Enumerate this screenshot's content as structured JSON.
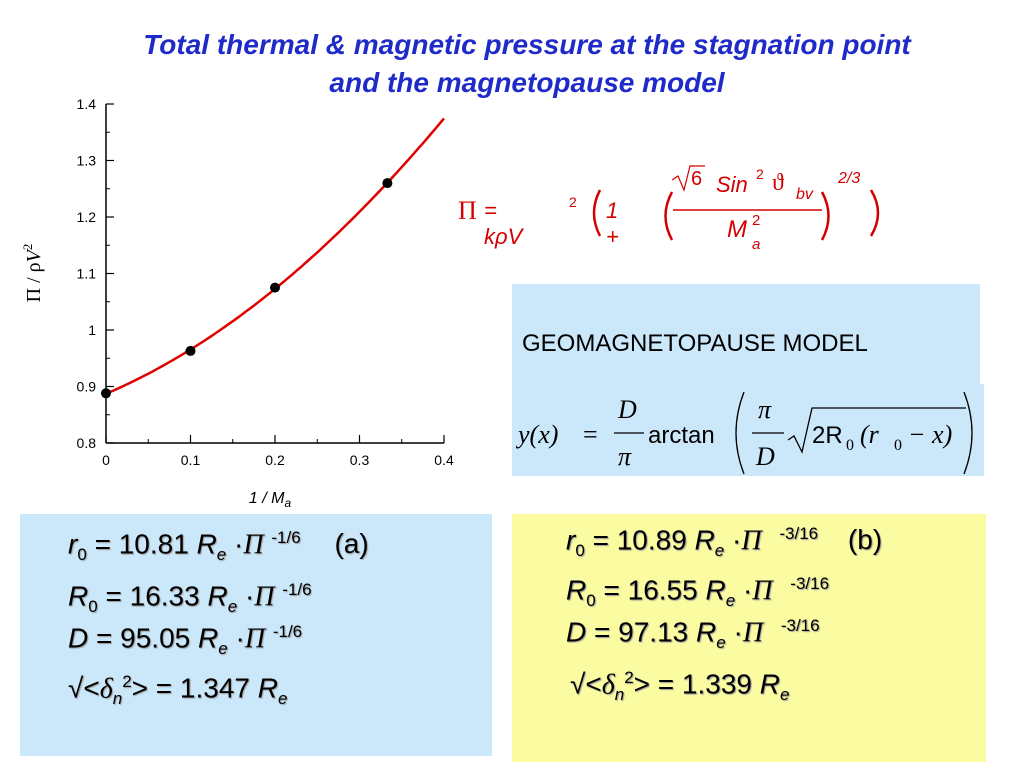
{
  "title": {
    "line1": "Total thermal & magnetic  pressure at the stagnation point",
    "line2": "and the magnetopause model"
  },
  "chart_data": {
    "type": "scatter",
    "xlabel": "1 / M_a",
    "ylabel": "Π / ρV²",
    "xlim": [
      0,
      0.4
    ],
    "ylim": [
      0.8,
      1.4
    ],
    "xticks": [
      "0",
      "0.1",
      "0.2",
      "0.3",
      "0.4"
    ],
    "yticks": [
      "0.8",
      "0.9",
      "1",
      "1.1",
      "1.2",
      "1.3",
      "1.4"
    ],
    "points": [
      {
        "x": 0.0,
        "y": 0.888
      },
      {
        "x": 0.1,
        "y": 0.963
      },
      {
        "x": 0.2,
        "y": 1.075
      },
      {
        "x": 0.333,
        "y": 1.26
      }
    ],
    "fit_curve": {
      "color": "#e00000",
      "x_range": [
        0,
        0.4
      ]
    },
    "point_color": "#000000",
    "grid": false
  },
  "formula_pi": {
    "lhs": "Π",
    "eq": "= kρV",
    "v_exp": "2",
    "one_plus": "1 +",
    "sqrt6": "6",
    "sin": "Sin",
    "sin_exp": "2",
    "theta": "ϑ",
    "theta_sub": "bv",
    "den": "M",
    "den_sup": "2",
    "den_sub": "a",
    "outer_exp": "2/3"
  },
  "model": {
    "label": "GEOMAGNETOPAUSE MODEL",
    "eq_lhs": "y(x)",
    "eq_D": "D",
    "eq_pi": "π",
    "eq_func": "arctan",
    "eq_sqrt": "2R",
    "eq_sqrt_sub": "0",
    "eq_inner": "(r",
    "eq_inner_sub": "0",
    "eq_inner_tail": "− x)"
  },
  "panel_a": {
    "r0": {
      "sym": "r",
      "sub": "0",
      "eq": "=  10.81",
      "unit": "R",
      "unit_sub": "e",
      "dot": "·",
      "pi": "Π",
      "exp": "-1/6",
      "tag": "(a)"
    },
    "R0": {
      "sym": "R",
      "sub": "0",
      "eq": "= 16.33",
      "unit": "R",
      "unit_sub": "e",
      "dot": "·",
      "pi": "Π",
      "exp": "-1/6"
    },
    "D": {
      "sym": "D",
      "eq": "=  95.05",
      "unit": "R",
      "unit_sub": "e",
      "dot": "·",
      "pi": "Π",
      "exp": "-1/6"
    },
    "delta": {
      "pre": "√<",
      "sym": "δ",
      "sub": "n",
      "sup": "2",
      "post": ">  =  1.347",
      "unit": "R",
      "unit_sub": "e"
    }
  },
  "panel_b": {
    "r0": {
      "sym": "r",
      "sub": "0",
      "eq": "=  10.89",
      "unit": "R",
      "unit_sub": "e",
      "dot": "·",
      "pi": "Π",
      "exp": "-3/16",
      "tag": "(b)"
    },
    "R0": {
      "sym": "R",
      "sub": "0",
      "eq": "= 16.55",
      "unit": "R",
      "unit_sub": "e",
      "dot": "·",
      "pi": "Π",
      "exp": "-3/16"
    },
    "D": {
      "sym": "D",
      "eq": "=  97.13",
      "unit": "R",
      "unit_sub": "e",
      "dot": "·",
      "pi": "Π",
      "exp": "-3/16"
    },
    "delta": {
      "pre": "√<",
      "sym": "δ",
      "sub": "n",
      "sup": "2",
      "post": ">  =  1.339",
      "unit": "R",
      "unit_sub": "e"
    }
  }
}
